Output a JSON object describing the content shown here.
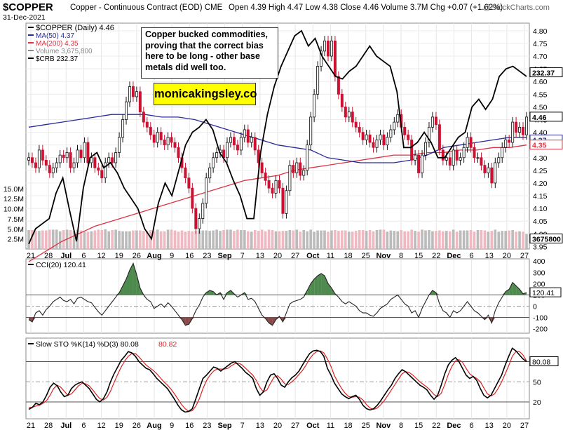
{
  "header": {
    "symbol": "$COPPER",
    "contract": "Copper - Continuous Contract (EOD)  CME",
    "date": "31-Dec-2021",
    "ohlc": "Open 4.39  High 4.47  Low 4.38  Close 4.46  Volume 3.7M  Chg +0.07 (+1.62%)",
    "brand": "@StockCharts.com"
  },
  "annotations": {
    "note": "Copper bucked commodities, proving that the correct bias here to be long - other base metals did well too.",
    "website": "monicakingsley.co"
  },
  "colors": {
    "up": "#111111",
    "down": "#cc1133",
    "ma50": "#2a2a9a",
    "ma200": "#dd3344",
    "crb": "#000000",
    "vol_up": "#bbbbbb",
    "vol_down": "#f0b8c0",
    "cci_pos_fill": "#4e8a4e",
    "cci_neg_fill": "#8a4a4a",
    "stoch_k": "#000000",
    "stoch_d": "#dd2222"
  },
  "chart_data": [
    {
      "type": "candlestick",
      "legend": [
        {
          "label": "$COPPER (Daily) 4.46",
          "color": "#000000"
        },
        {
          "label": "MA(50) 4.37",
          "color": "#2a2a9a"
        },
        {
          "label": "MA(200) 4.35",
          "color": "#dd3344"
        },
        {
          "label": "Volume 3,675,800",
          "color": "#888888"
        },
        {
          "label": "$CRB 232.37",
          "color": "#000000"
        }
      ],
      "legend_position": "top-left",
      "x_tick_labels": [
        "21",
        "28",
        "Jul",
        "6",
        "12",
        "19",
        "26",
        "Aug",
        "9",
        "16",
        "23",
        "Sep",
        "7",
        "13",
        "20",
        "27",
        "Oct",
        "11",
        "18",
        "25",
        "Nov",
        "8",
        "15",
        "22",
        "Dec",
        "6",
        "13",
        "20",
        "27"
      ],
      "y_ticks": [
        3.95,
        4.0,
        4.05,
        4.1,
        4.15,
        4.2,
        4.25,
        4.3,
        4.35,
        4.4,
        4.45,
        4.5,
        4.55,
        4.6,
        4.65,
        4.7,
        4.75,
        4.8
      ],
      "y_tick_labels": [
        "3.95",
        "4.00",
        "4.05",
        "4.10",
        "4.15",
        "4.20",
        "4.25",
        "4.30",
        "4.35",
        "4.40",
        "4.45",
        "4.50",
        "4.55",
        "4.60",
        "4.65",
        "4.70",
        "4.75",
        "4.80"
      ],
      "ylim": [
        3.94,
        4.83
      ],
      "volume_ticks": [
        2.5,
        5.0,
        7.5,
        10.0,
        12.5,
        15.0
      ],
      "volume_tick_labels": [
        "2.5M",
        "5.0M",
        "7.5M",
        "10.0M",
        "12.5M",
        "15.0M"
      ],
      "volume_max": 16,
      "last_labels": [
        {
          "label": "232.37",
          "value": 4.635,
          "color": "#000000"
        },
        {
          "label": "4.46",
          "value": 4.46,
          "color": "#000000"
        },
        {
          "label": "4.37",
          "value": 4.37,
          "color": "#2a2a9a"
        },
        {
          "label": "4.35",
          "value": 4.35,
          "color": "#dd3344"
        },
        {
          "label": "3675800",
          "value": 3.98,
          "color": "#000000"
        }
      ],
      "close": [
        4.3,
        4.28,
        4.26,
        4.33,
        4.29,
        4.27,
        4.24,
        4.26,
        4.28,
        4.31,
        4.3,
        4.32,
        4.26,
        4.28,
        4.33,
        4.3,
        4.36,
        4.28,
        4.3,
        4.26,
        4.25,
        4.22,
        4.28,
        4.3,
        4.28,
        4.32,
        4.38,
        4.45,
        4.52,
        4.58,
        4.54,
        4.56,
        4.48,
        4.44,
        4.42,
        4.39,
        4.36,
        4.4,
        4.37,
        4.35,
        4.38,
        4.36,
        4.34,
        4.3,
        4.26,
        4.22,
        4.18,
        4.1,
        4.02,
        4.06,
        4.12,
        4.22,
        4.26,
        4.3,
        4.32,
        4.33,
        4.3,
        4.36,
        4.38,
        4.35,
        4.33,
        4.38,
        4.41,
        4.36,
        4.38,
        4.33,
        4.28,
        4.24,
        4.21,
        4.18,
        4.16,
        4.21,
        4.18,
        4.08,
        4.17,
        4.27,
        4.24,
        4.28,
        4.23,
        4.25,
        4.35,
        4.46,
        4.55,
        4.66,
        4.72,
        4.76,
        4.7,
        4.76,
        4.62,
        4.55,
        4.5,
        4.46,
        4.48,
        4.44,
        4.42,
        4.4,
        4.37,
        4.39,
        4.36,
        4.34,
        4.37,
        4.39,
        4.35,
        4.38,
        4.41,
        4.44,
        4.47,
        4.42,
        4.39,
        4.37,
        4.29,
        4.31,
        4.24,
        4.31,
        4.36,
        4.42,
        4.46,
        4.43,
        4.33,
        4.29,
        4.3,
        4.27,
        4.33,
        4.29,
        4.3,
        4.34,
        4.38,
        4.34,
        4.3,
        4.3,
        4.27,
        4.24,
        4.26,
        4.2,
        4.28,
        4.3,
        4.34,
        4.37,
        4.36,
        4.44,
        4.4,
        4.42,
        4.39,
        4.46
      ],
      "ma50": [
        4.42,
        4.43,
        4.44,
        4.45,
        4.46,
        4.47,
        4.47,
        4.47,
        4.46,
        4.46,
        4.45,
        4.43,
        4.41,
        4.39,
        4.37,
        4.35,
        4.34,
        4.33,
        4.3,
        4.29,
        4.28,
        4.28,
        4.28,
        4.29,
        4.31,
        4.34,
        4.35,
        4.36,
        4.37,
        4.38,
        4.38
      ],
      "ma200": [
        3.89,
        3.93,
        3.97,
        4.0,
        4.03,
        4.05,
        4.07,
        4.09,
        4.11,
        4.13,
        4.15,
        4.17,
        4.19,
        4.21,
        4.22,
        4.23,
        4.25,
        4.26,
        4.27,
        4.28,
        4.29,
        4.3,
        4.31,
        4.31,
        4.32,
        4.32,
        4.33,
        4.33,
        4.34,
        4.34,
        4.35
      ],
      "crb_overlay": [
        3.96,
        4.02,
        4.04,
        4.06,
        4.16,
        4.22,
        4.09,
        3.97,
        4.18,
        4.3,
        4.32,
        4.26,
        4.28,
        4.24,
        4.18,
        4.14,
        4.1,
        4.02,
        3.98,
        4.12,
        4.2,
        4.15,
        4.25,
        4.35,
        4.4,
        4.42,
        4.45,
        4.41,
        4.32,
        4.28,
        4.21,
        4.15,
        4.06,
        4.06,
        4.32,
        4.47,
        4.58,
        4.66,
        4.72,
        4.78,
        4.8,
        4.74,
        4.77,
        4.7,
        4.66,
        4.62,
        4.61,
        4.64,
        4.66,
        4.7,
        4.74,
        4.7,
        4.68,
        4.66,
        4.56,
        4.34,
        4.34,
        4.36,
        4.4,
        4.36,
        4.3,
        4.3,
        4.34,
        4.38,
        4.4,
        4.5,
        4.53,
        4.49,
        4.53,
        4.62,
        4.65,
        4.66,
        4.64,
        4.62
      ],
      "volume_M": [
        4.7,
        4.7,
        4.5,
        4.5,
        4.6,
        4.6,
        4.8,
        4.8,
        4.8,
        4.4,
        4.7,
        4.8,
        4.7,
        4.5,
        4.8,
        4.6,
        4.3,
        4.3,
        4.4,
        4.6,
        4.8,
        4.7,
        4.9,
        4.4,
        4.7,
        4.8,
        4.5,
        4.4,
        4.4,
        4.4,
        4.6,
        4.6,
        4.6,
        4.5,
        4.5,
        4.7,
        4.4,
        4.8,
        4.4,
        4.4,
        4.8,
        4.8,
        4.6,
        4.3,
        4.6,
        4.3,
        4.5,
        4.4,
        4.5,
        4.6,
        4.6,
        4.6,
        4.5,
        4.6,
        4.8,
        4.5,
        4.7,
        4.8,
        4.8,
        4.5,
        4.8,
        4.7,
        4.7,
        4.4,
        4.3,
        4.7,
        4.5,
        4.8,
        4.4,
        4.8,
        4.7,
        4.4,
        4.4,
        4.5,
        4.5,
        4.7,
        4.6,
        4.8,
        4.3,
        4.7,
        4.4,
        4.8,
        4.3,
        4.6,
        4.6,
        4.6,
        4.3,
        4.6,
        4.7,
        4.5,
        4.6,
        4.6,
        4.3,
        4.3,
        4.5,
        4.7,
        4.7,
        4.5,
        4.7,
        4.4,
        4.7,
        4.8,
        4.8,
        4.3,
        4.6,
        4.5,
        4.4,
        4.7,
        4.4,
        4.4,
        4.8,
        4.5,
        4.3,
        4.8,
        4.6,
        4.7,
        4.4,
        4.5,
        4.6,
        4.4,
        4.5,
        4.4,
        4.8,
        4.3,
        4.6,
        4.6,
        4.6,
        4.7,
        4.3,
        4.7,
        4.7,
        4.6,
        4.3,
        4.5,
        4.8,
        4.3,
        4.5,
        4.5,
        4.6,
        4.7,
        4.3,
        4.4,
        4.3,
        3.7
      ]
    },
    {
      "type": "line",
      "legend": "CCI(20) 120.41",
      "y_ticks": [
        -200,
        -100,
        0,
        100,
        200,
        300,
        400
      ],
      "y_tick_labels": [
        "-200",
        "-100",
        "0",
        "100",
        "200",
        "300",
        "400"
      ],
      "ylim": [
        -240,
        420
      ],
      "last_label": "120.41",
      "values": [
        -120,
        -140,
        -60,
        -40,
        -80,
        -30,
        0,
        40,
        60,
        80,
        50,
        40,
        60,
        20,
        70,
        80,
        60,
        40,
        30,
        -10,
        -50,
        -80,
        -40,
        0,
        40,
        80,
        120,
        180,
        240,
        320,
        380,
        280,
        160,
        100,
        60,
        40,
        -20,
        0,
        20,
        -10,
        30,
        0,
        -40,
        -80,
        -120,
        -170,
        -160,
        -110,
        -40,
        10,
        80,
        120,
        140,
        130,
        100,
        120,
        60,
        120,
        140,
        110,
        80,
        100,
        120,
        60,
        70,
        40,
        -20,
        -80,
        -110,
        -150,
        -170,
        -120,
        -90,
        -140,
        -60,
        20,
        40,
        50,
        60,
        80,
        140,
        200,
        240,
        270,
        290,
        270,
        200,
        160,
        110,
        80,
        40,
        20,
        40,
        20,
        0,
        -40,
        -60,
        -60,
        -80,
        -90,
        -60,
        -20,
        0,
        20,
        60,
        80,
        100,
        60,
        20,
        0,
        -60,
        -40,
        -100,
        -20,
        40,
        100,
        140,
        120,
        20,
        -40,
        -60,
        -100,
        -40,
        -60,
        -40,
        0,
        40,
        0,
        -40,
        -60,
        -90,
        -120,
        -80,
        -150,
        -40,
        30,
        80,
        130,
        150,
        210,
        180,
        150,
        110,
        120
      ]
    },
    {
      "type": "line",
      "legend": [
        "Slow STO %K(14) %D(3) 80.08",
        "80.82"
      ],
      "y_ticks": [
        20,
        50,
        80
      ],
      "y_tick_labels": [
        "20",
        "50",
        "80"
      ],
      "ylim": [
        -5,
        115
      ],
      "last_label": "80.08",
      "series": [
        {
          "values": [
            9,
            12,
            18,
            16,
            20,
            30,
            42,
            48,
            44,
            35,
            28,
            30,
            40,
            45,
            48,
            50,
            45,
            40,
            32,
            24,
            20,
            25,
            35,
            50,
            62,
            72,
            82,
            88,
            95,
            93,
            88,
            80,
            75,
            70,
            68,
            62,
            55,
            50,
            45,
            40,
            32,
            24,
            15,
            8,
            5,
            6,
            10,
            25,
            40,
            55,
            60,
            66,
            72,
            70,
            66,
            70,
            74,
            78,
            80,
            75,
            70,
            64,
            60,
            55,
            40,
            30,
            35,
            50,
            60,
            62,
            55,
            45,
            42,
            50,
            56,
            60,
            66,
            75,
            84,
            92,
            96,
            97,
            95,
            88,
            70,
            60,
            48,
            40,
            32,
            28,
            25,
            28,
            30,
            24,
            15,
            10,
            8,
            10,
            15,
            22,
            30,
            38,
            45,
            55,
            62,
            68,
            65,
            60,
            55,
            50,
            45,
            42,
            38,
            30,
            24,
            30,
            45,
            62,
            75,
            82,
            86,
            80,
            70,
            60,
            55,
            58,
            52,
            40,
            30,
            26,
            30,
            40,
            50,
            60,
            75,
            88,
            100,
            96,
            90,
            84,
            80
          ]
        },
        {
          "values": [
            12,
            12,
            14,
            15,
            18,
            22,
            30,
            40,
            45,
            42,
            36,
            30,
            32,
            38,
            44,
            48,
            47,
            44,
            38,
            31,
            25,
            23,
            27,
            36,
            49,
            61,
            72,
            81,
            88,
            92,
            92,
            87,
            81,
            75,
            71,
            67,
            62,
            56,
            50,
            45,
            39,
            32,
            24,
            16,
            10,
            6,
            7,
            14,
            25,
            40,
            52,
            60,
            66,
            69,
            69,
            69,
            70,
            74,
            77,
            78,
            75,
            70,
            65,
            60,
            52,
            42,
            35,
            38,
            48,
            57,
            59,
            54,
            47,
            46,
            50,
            55,
            61,
            67,
            75,
            84,
            91,
            95,
            96,
            93,
            84,
            73,
            59,
            49,
            40,
            33,
            28,
            27,
            28,
            27,
            23,
            16,
            11,
            9,
            11,
            16,
            22,
            30,
            38,
            46,
            54,
            62,
            65,
            64,
            60,
            55,
            50,
            46,
            42,
            37,
            31,
            28,
            33,
            46,
            61,
            73,
            81,
            83,
            79,
            70,
            62,
            58,
            55,
            50,
            41,
            32,
            29,
            32,
            40,
            50,
            62,
            74,
            88,
            95,
            95,
            90,
            81
          ]
        }
      ]
    }
  ]
}
